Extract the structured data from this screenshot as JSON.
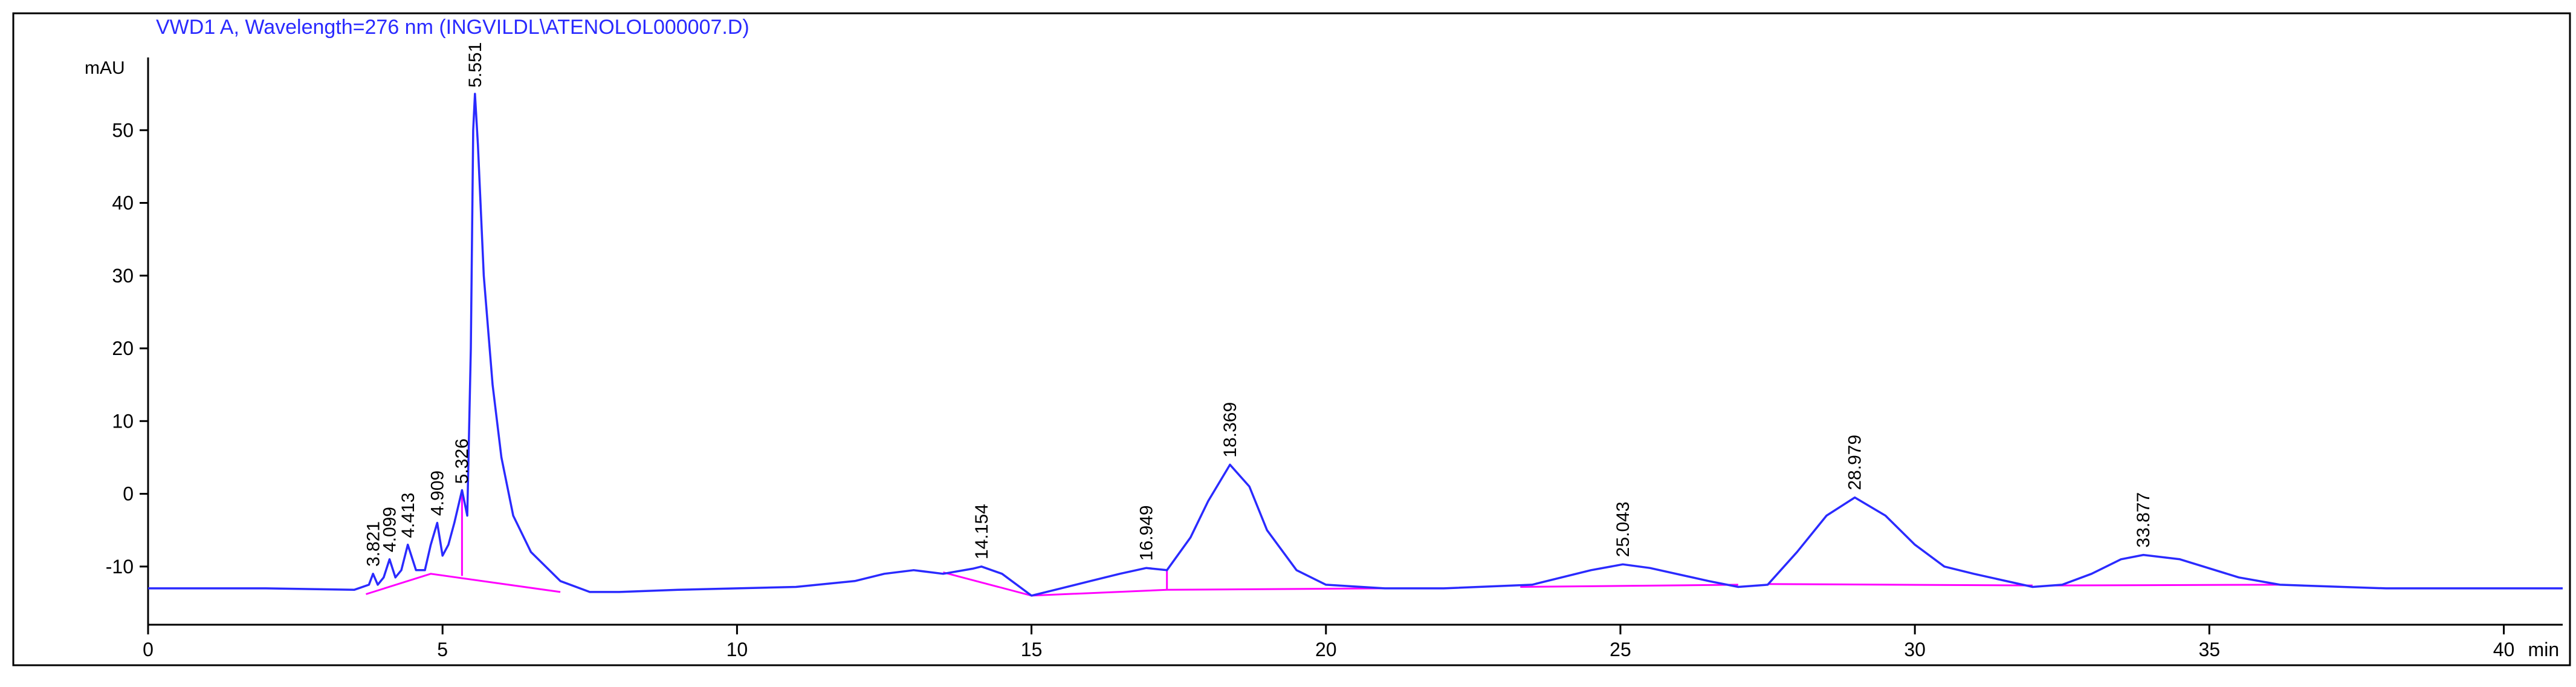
{
  "chart_data": {
    "type": "line",
    "title": "VWD1 A, Wavelength=276 nm (INGVILDL\\ATENOLOL000007.D)",
    "y_label": "mAU",
    "x_label": "min",
    "xlim": [
      0,
      41
    ],
    "ylim": [
      -18,
      60
    ],
    "xticks": [
      0,
      5,
      10,
      15,
      20,
      25,
      30,
      35,
      40
    ],
    "yticks": [
      -10,
      0,
      10,
      20,
      30,
      40,
      50
    ],
    "grid": false,
    "color": "#2a2aff",
    "x": [
      0,
      2,
      3.5,
      3.75,
      3.82,
      3.9,
      4.0,
      4.1,
      4.2,
      4.3,
      4.41,
      4.55,
      4.7,
      4.8,
      4.91,
      5.0,
      5.1,
      5.2,
      5.33,
      5.42,
      5.48,
      5.52,
      5.55,
      5.6,
      5.7,
      5.85,
      6.0,
      6.2,
      6.5,
      7.0,
      7.5,
      8,
      9,
      10,
      11,
      12,
      12.5,
      13,
      13.5,
      14.0,
      14.15,
      14.5,
      15,
      15.5,
      16,
      16.5,
      16.95,
      17.3,
      17.7,
      18.0,
      18.37,
      18.7,
      19.0,
      19.5,
      20,
      21,
      22,
      23.5,
      24.5,
      25.04,
      25.5,
      26.5,
      27,
      27.5,
      28.0,
      28.5,
      28.98,
      29.5,
      30,
      30.5,
      31,
      32,
      32.5,
      33,
      33.5,
      33.88,
      34.5,
      35.5,
      36.2,
      38,
      41
    ],
    "values": [
      -13,
      -13,
      -13.2,
      -12.5,
      -11,
      -12.5,
      -11.5,
      -9,
      -11.5,
      -10.5,
      -7,
      -10.5,
      -10.5,
      -7,
      -4,
      -8.5,
      -7,
      -4,
      0.5,
      -3,
      20,
      50,
      55,
      48,
      30,
      15,
      5,
      -3,
      -8,
      -12,
      -13.5,
      -13.5,
      -13.2,
      -13,
      -12.8,
      -12,
      -11,
      -10.5,
      -11,
      -10.3,
      -10,
      -11,
      -14,
      -13,
      -12,
      -11,
      -10.2,
      -10.5,
      -6,
      -1,
      4,
      1,
      -5,
      -10.5,
      -12.5,
      -13,
      -13,
      -12.5,
      -10.5,
      -9.7,
      -10.2,
      -12,
      -12.8,
      -12.5,
      -8,
      -3,
      -0.5,
      -3,
      -7,
      -10,
      -11,
      -12.8,
      -12.5,
      -11,
      -9,
      -8.4,
      -9,
      -11.5,
      -12.5,
      -13,
      -13
    ],
    "peaks": [
      3.821,
      4.099,
      4.413,
      4.909,
      5.326,
      5.551,
      14.154,
      16.949,
      18.369,
      25.043,
      28.979,
      33.877
    ],
    "baseline_color": "#ff00ff",
    "baselines": [
      {
        "x": [
          3.7,
          4.8,
          7.0
        ],
        "y": [
          -13.8,
          -11,
          -13.5
        ]
      },
      {
        "x": [
          5.33,
          5.33
        ],
        "y": [
          -11.3,
          0.5
        ]
      },
      {
        "x": [
          13.5,
          15.0,
          17.3,
          21.0
        ],
        "y": [
          -10.8,
          -14,
          -13.2,
          -13
        ]
      },
      {
        "x": [
          17.3,
          17.3
        ],
        "y": [
          -13.2,
          -10.5
        ]
      },
      {
        "x": [
          23.3,
          27.0
        ],
        "y": [
          -12.8,
          -12.5
        ]
      },
      {
        "x": [
          27.5,
          32.0
        ],
        "y": [
          -12.4,
          -12.6
        ]
      },
      {
        "x": [
          32.3,
          36.2
        ],
        "y": [
          -12.6,
          -12.5
        ]
      }
    ]
  }
}
